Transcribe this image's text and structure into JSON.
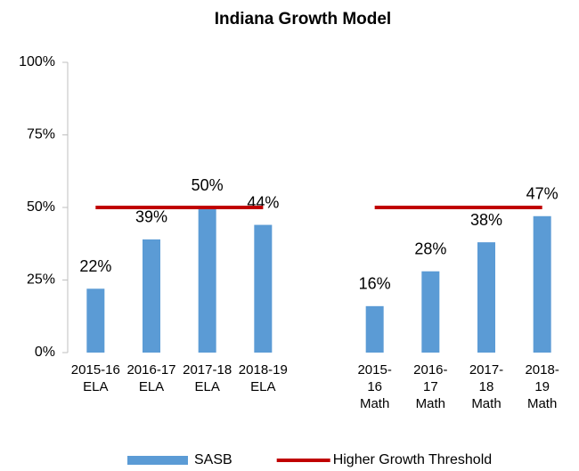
{
  "chart_data": {
    "type": "bar",
    "title": "Indiana Growth Model",
    "categories": [
      "2015-16 ELA",
      "2016-17 ELA",
      "2017-18 ELA",
      "2018-19 ELA",
      null,
      "2015-16 Math",
      "2016-17 Math",
      "2017-18 Math",
      "2018-19 Math"
    ],
    "series": [
      {
        "name": "SASB",
        "color": "#5b9bd5",
        "values": [
          22,
          39,
          50,
          44,
          null,
          16,
          28,
          38,
          47
        ],
        "value_labels": [
          "22%",
          "39%",
          "50%",
          "44%",
          null,
          "16%",
          "28%",
          "38%",
          "47%"
        ]
      },
      {
        "name": "Higher Growth Threshold",
        "type": "line",
        "color": "#c00000",
        "values": [
          50,
          50,
          50,
          50,
          null,
          50,
          50,
          50,
          50
        ]
      }
    ],
    "ylim": [
      0,
      100
    ],
    "yticks": [
      {
        "value": 0,
        "label": "0%"
      },
      {
        "value": 25,
        "label": "25%"
      },
      {
        "value": 50,
        "label": "50%"
      },
      {
        "value": 75,
        "label": "75%"
      },
      {
        "value": 100,
        "label": "100%"
      }
    ],
    "grid": false,
    "legend": "bottom"
  }
}
